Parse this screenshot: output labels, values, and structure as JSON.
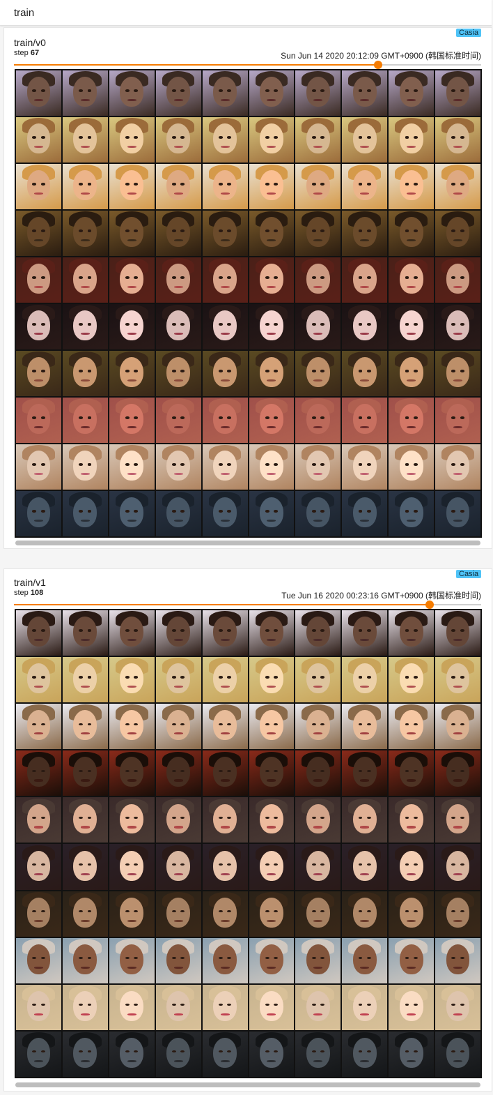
{
  "header": {
    "title": "train"
  },
  "cards": [
    {
      "name": "train/v0",
      "step_label": "step",
      "step_value": "67",
      "date": "Sun Jun 14 2020 20:12:09 GMT+0900 (韩国标准时间)",
      "tag": "Casia",
      "slider_fraction": 0.78
    },
    {
      "name": "train/v1",
      "step_label": "step",
      "step_value": "108",
      "date": "Tue Jun 16 2020 00:23:16 GMT+0900 (韩国标准时间)",
      "tag": "Casia",
      "slider_fraction": 0.89
    }
  ],
  "colors": {
    "accent": "#f57c00",
    "tag": "#4fc3f7"
  },
  "face_rows": [
    [
      {
        "bg": "#b7a9c9",
        "skin": "#7a5a4a",
        "hair": "#3a2a22",
        "mouth": "#5a2a2a"
      },
      {
        "bg": "#d9c880",
        "skin": "#e3c39a",
        "hair": "#9b6b3a",
        "mouth": "#b05050"
      },
      {
        "bg": "#e9e0d0",
        "skin": "#ecb48a",
        "hair": "#d59a4a",
        "mouth": "#b04848"
      },
      {
        "bg": "#7a5a2a",
        "skin": "#6b4b2b",
        "hair": "#2a1c10",
        "mouth": "#3a2a1a"
      },
      {
        "bg": "#4a2018",
        "skin": "#d9a48a",
        "hair": "#5a2018",
        "mouth": "#b04848"
      },
      {
        "bg": "#1a1214",
        "skin": "#e8c8c4",
        "hair": "#2a1a18",
        "mouth": "#9a3a48"
      },
      {
        "bg": "#5a4a22",
        "skin": "#c99870",
        "hair": "#3a2818",
        "mouth": "#8a4a3a"
      },
      {
        "bg": "#a0504a",
        "skin": "#c87060",
        "hair": "#b06050",
        "mouth": "#6a2a2a"
      },
      {
        "bg": "#d9c8b8",
        "skin": "#f0d4bc",
        "hair": "#b08460",
        "mouth": "#c06070"
      },
      {
        "bg": "#2a3444",
        "skin": "#4a5a6a",
        "hair": "#1a222c",
        "mouth": "#2a3038"
      }
    ],
    [
      {
        "bg": "#e9e2ea",
        "skin": "#6a4a3a",
        "hair": "#2a1a14",
        "mouth": "#4a2a2a"
      },
      {
        "bg": "#d6c98a",
        "skin": "#ecd0a8",
        "hair": "#c9a45a",
        "mouth": "#b05050"
      },
      {
        "bg": "#eaeaf0",
        "skin": "#e8bc9a",
        "hair": "#8a6a4a",
        "mouth": "#a04040"
      },
      {
        "bg": "#8a2a1a",
        "skin": "#4a3022",
        "hair": "#1a0e08",
        "mouth": "#3a1a12"
      },
      {
        "bg": "#3a2a2a",
        "skin": "#e0b094",
        "hair": "#4a3a34",
        "mouth": "#b04848"
      },
      {
        "bg": "#2a2028",
        "skin": "#e6c2aa",
        "hair": "#2a1a18",
        "mouth": "#a04050"
      },
      {
        "bg": "#2a2218",
        "skin": "#b08868",
        "hair": "#3a2818",
        "mouth": "#6a3a2a"
      },
      {
        "bg": "#8aa0b0",
        "skin": "#8a5a40",
        "hair": "#d0c8c0",
        "mouth": "#5a2a22"
      },
      {
        "bg": "#c8b490",
        "skin": "#ecd0b8",
        "hair": "#d8c098",
        "mouth": "#c04050"
      },
      {
        "bg": "#2a2c30",
        "skin": "#505860",
        "hair": "#141618",
        "mouth": "#2a2c30"
      }
    ]
  ]
}
